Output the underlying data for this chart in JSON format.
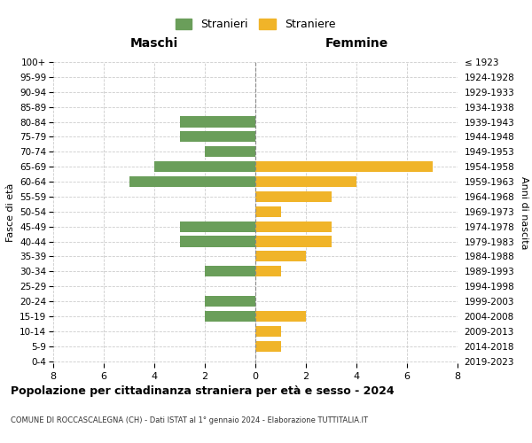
{
  "age_groups": [
    "100+",
    "95-99",
    "90-94",
    "85-89",
    "80-84",
    "75-79",
    "70-74",
    "65-69",
    "60-64",
    "55-59",
    "50-54",
    "45-49",
    "40-44",
    "35-39",
    "30-34",
    "25-29",
    "20-24",
    "15-19",
    "10-14",
    "5-9",
    "0-4"
  ],
  "birth_years": [
    "≤ 1923",
    "1924-1928",
    "1929-1933",
    "1934-1938",
    "1939-1943",
    "1944-1948",
    "1949-1953",
    "1954-1958",
    "1959-1963",
    "1964-1968",
    "1969-1973",
    "1974-1978",
    "1979-1983",
    "1984-1988",
    "1989-1993",
    "1994-1998",
    "1999-2003",
    "2004-2008",
    "2009-2013",
    "2014-2018",
    "2019-2023"
  ],
  "maschi": [
    0,
    0,
    0,
    0,
    3,
    3,
    2,
    4,
    5,
    0,
    0,
    3,
    3,
    0,
    2,
    0,
    2,
    2,
    0,
    0,
    0
  ],
  "femmine": [
    0,
    0,
    0,
    0,
    0,
    0,
    0,
    7,
    4,
    3,
    1,
    3,
    3,
    2,
    1,
    0,
    0,
    2,
    1,
    1,
    0
  ],
  "color_maschi": "#6a9e5a",
  "color_femmine": "#f0b429",
  "title": "Popolazione per cittadinanza straniera per età e sesso - 2024",
  "subtitle": "COMUNE DI ROCCASCALEGNA (CH) - Dati ISTAT al 1° gennaio 2024 - Elaborazione TUTTITALIA.IT",
  "ylabel_left": "Fasce di età",
  "ylabel_right": "Anni di nascita",
  "xlabel_maschi": "Maschi",
  "xlabel_femmine": "Femmine",
  "legend_maschi": "Stranieri",
  "legend_femmine": "Straniere",
  "xlim": 8,
  "background_color": "#ffffff",
  "grid_color": "#cccccc"
}
